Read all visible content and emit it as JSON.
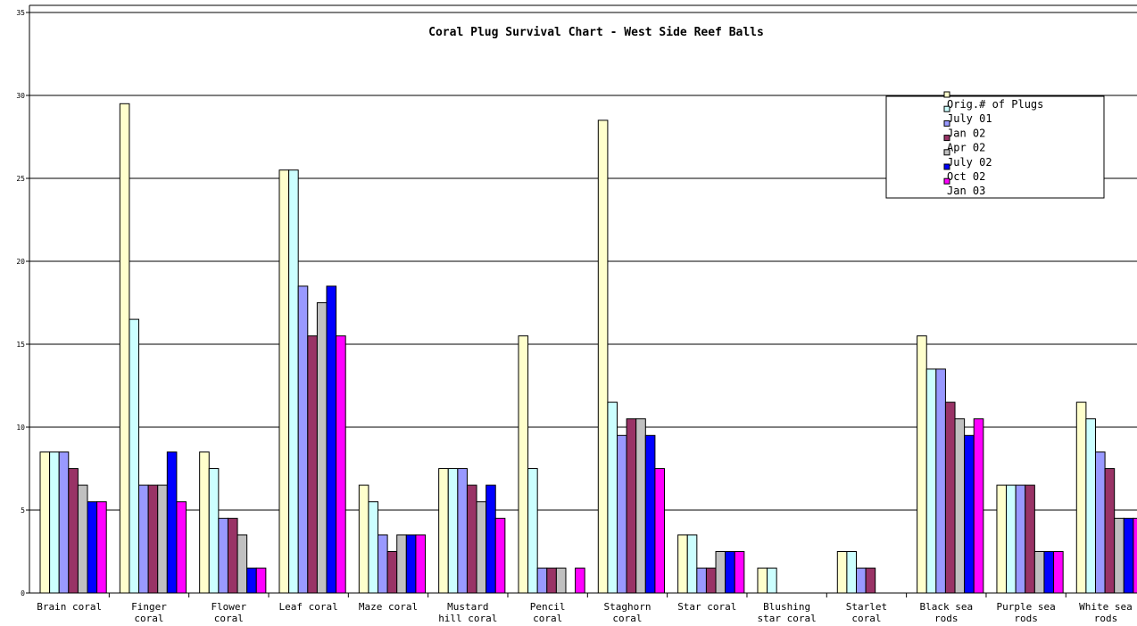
{
  "chart_data": {
    "type": "bar",
    "title": "Coral Plug Survival Chart - West Side Reef Balls",
    "xlabel": "",
    "ylabel": "",
    "ylim": [
      0,
      35
    ],
    "yticks": [
      0,
      5,
      10,
      15,
      20,
      25,
      30,
      35
    ],
    "grid": true,
    "legend_position": "top-right",
    "categories": [
      [
        "Brain coral"
      ],
      [
        "Finger",
        "coral"
      ],
      [
        "Flower",
        "coral"
      ],
      [
        "Leaf coral"
      ],
      [
        "Maze coral"
      ],
      [
        "Mustard",
        "hill coral"
      ],
      [
        "Pencil",
        "coral"
      ],
      [
        "Staghorn",
        "coral"
      ],
      [
        "Star coral"
      ],
      [
        "Blushing",
        "star coral"
      ],
      [
        "Starlet",
        "coral"
      ],
      [
        "Black sea",
        "rods"
      ],
      [
        "Purple sea",
        "rods"
      ],
      [
        "White sea",
        "rods"
      ]
    ],
    "series": [
      {
        "name": "Orig.# of Plugs",
        "color": "#ffffcc",
        "values": [
          8.5,
          29.5,
          8.5,
          25.5,
          6.5,
          7.5,
          15.5,
          28.5,
          3.5,
          1.5,
          2.5,
          15.5,
          6.5,
          11.5
        ]
      },
      {
        "name": "July 01",
        "color": "#ccffff",
        "values": [
          8.5,
          16.5,
          7.5,
          25.5,
          5.5,
          7.5,
          7.5,
          11.5,
          3.5,
          1.5,
          2.5,
          13.5,
          6.5,
          10.5
        ]
      },
      {
        "name": "Jan 02",
        "color": "#9999ff",
        "values": [
          8.5,
          6.5,
          4.5,
          18.5,
          3.5,
          7.5,
          1.5,
          9.5,
          1.5,
          0,
          1.5,
          13.5,
          6.5,
          8.5
        ]
      },
      {
        "name": "Apr 02",
        "color": "#993366",
        "values": [
          7.5,
          6.5,
          4.5,
          15.5,
          2.5,
          6.5,
          1.5,
          10.5,
          1.5,
          0,
          1.5,
          11.5,
          6.5,
          7.5
        ]
      },
      {
        "name": "July 02",
        "color": "#c0c0c0",
        "values": [
          6.5,
          6.5,
          3.5,
          17.5,
          3.5,
          5.5,
          1.5,
          10.5,
          2.5,
          0,
          0,
          10.5,
          2.5,
          4.5
        ]
      },
      {
        "name": "Oct 02",
        "color": "#0000ff",
        "values": [
          5.5,
          8.5,
          1.5,
          18.5,
          3.5,
          6.5,
          0,
          9.5,
          2.5,
          0,
          0,
          9.5,
          2.5,
          4.5
        ]
      },
      {
        "name": "Jan 03",
        "color": "#ff00ff",
        "values": [
          5.5,
          5.5,
          1.5,
          15.5,
          3.5,
          4.5,
          1.5,
          7.5,
          2.5,
          0,
          0,
          10.5,
          2.5,
          4.5
        ]
      }
    ]
  }
}
